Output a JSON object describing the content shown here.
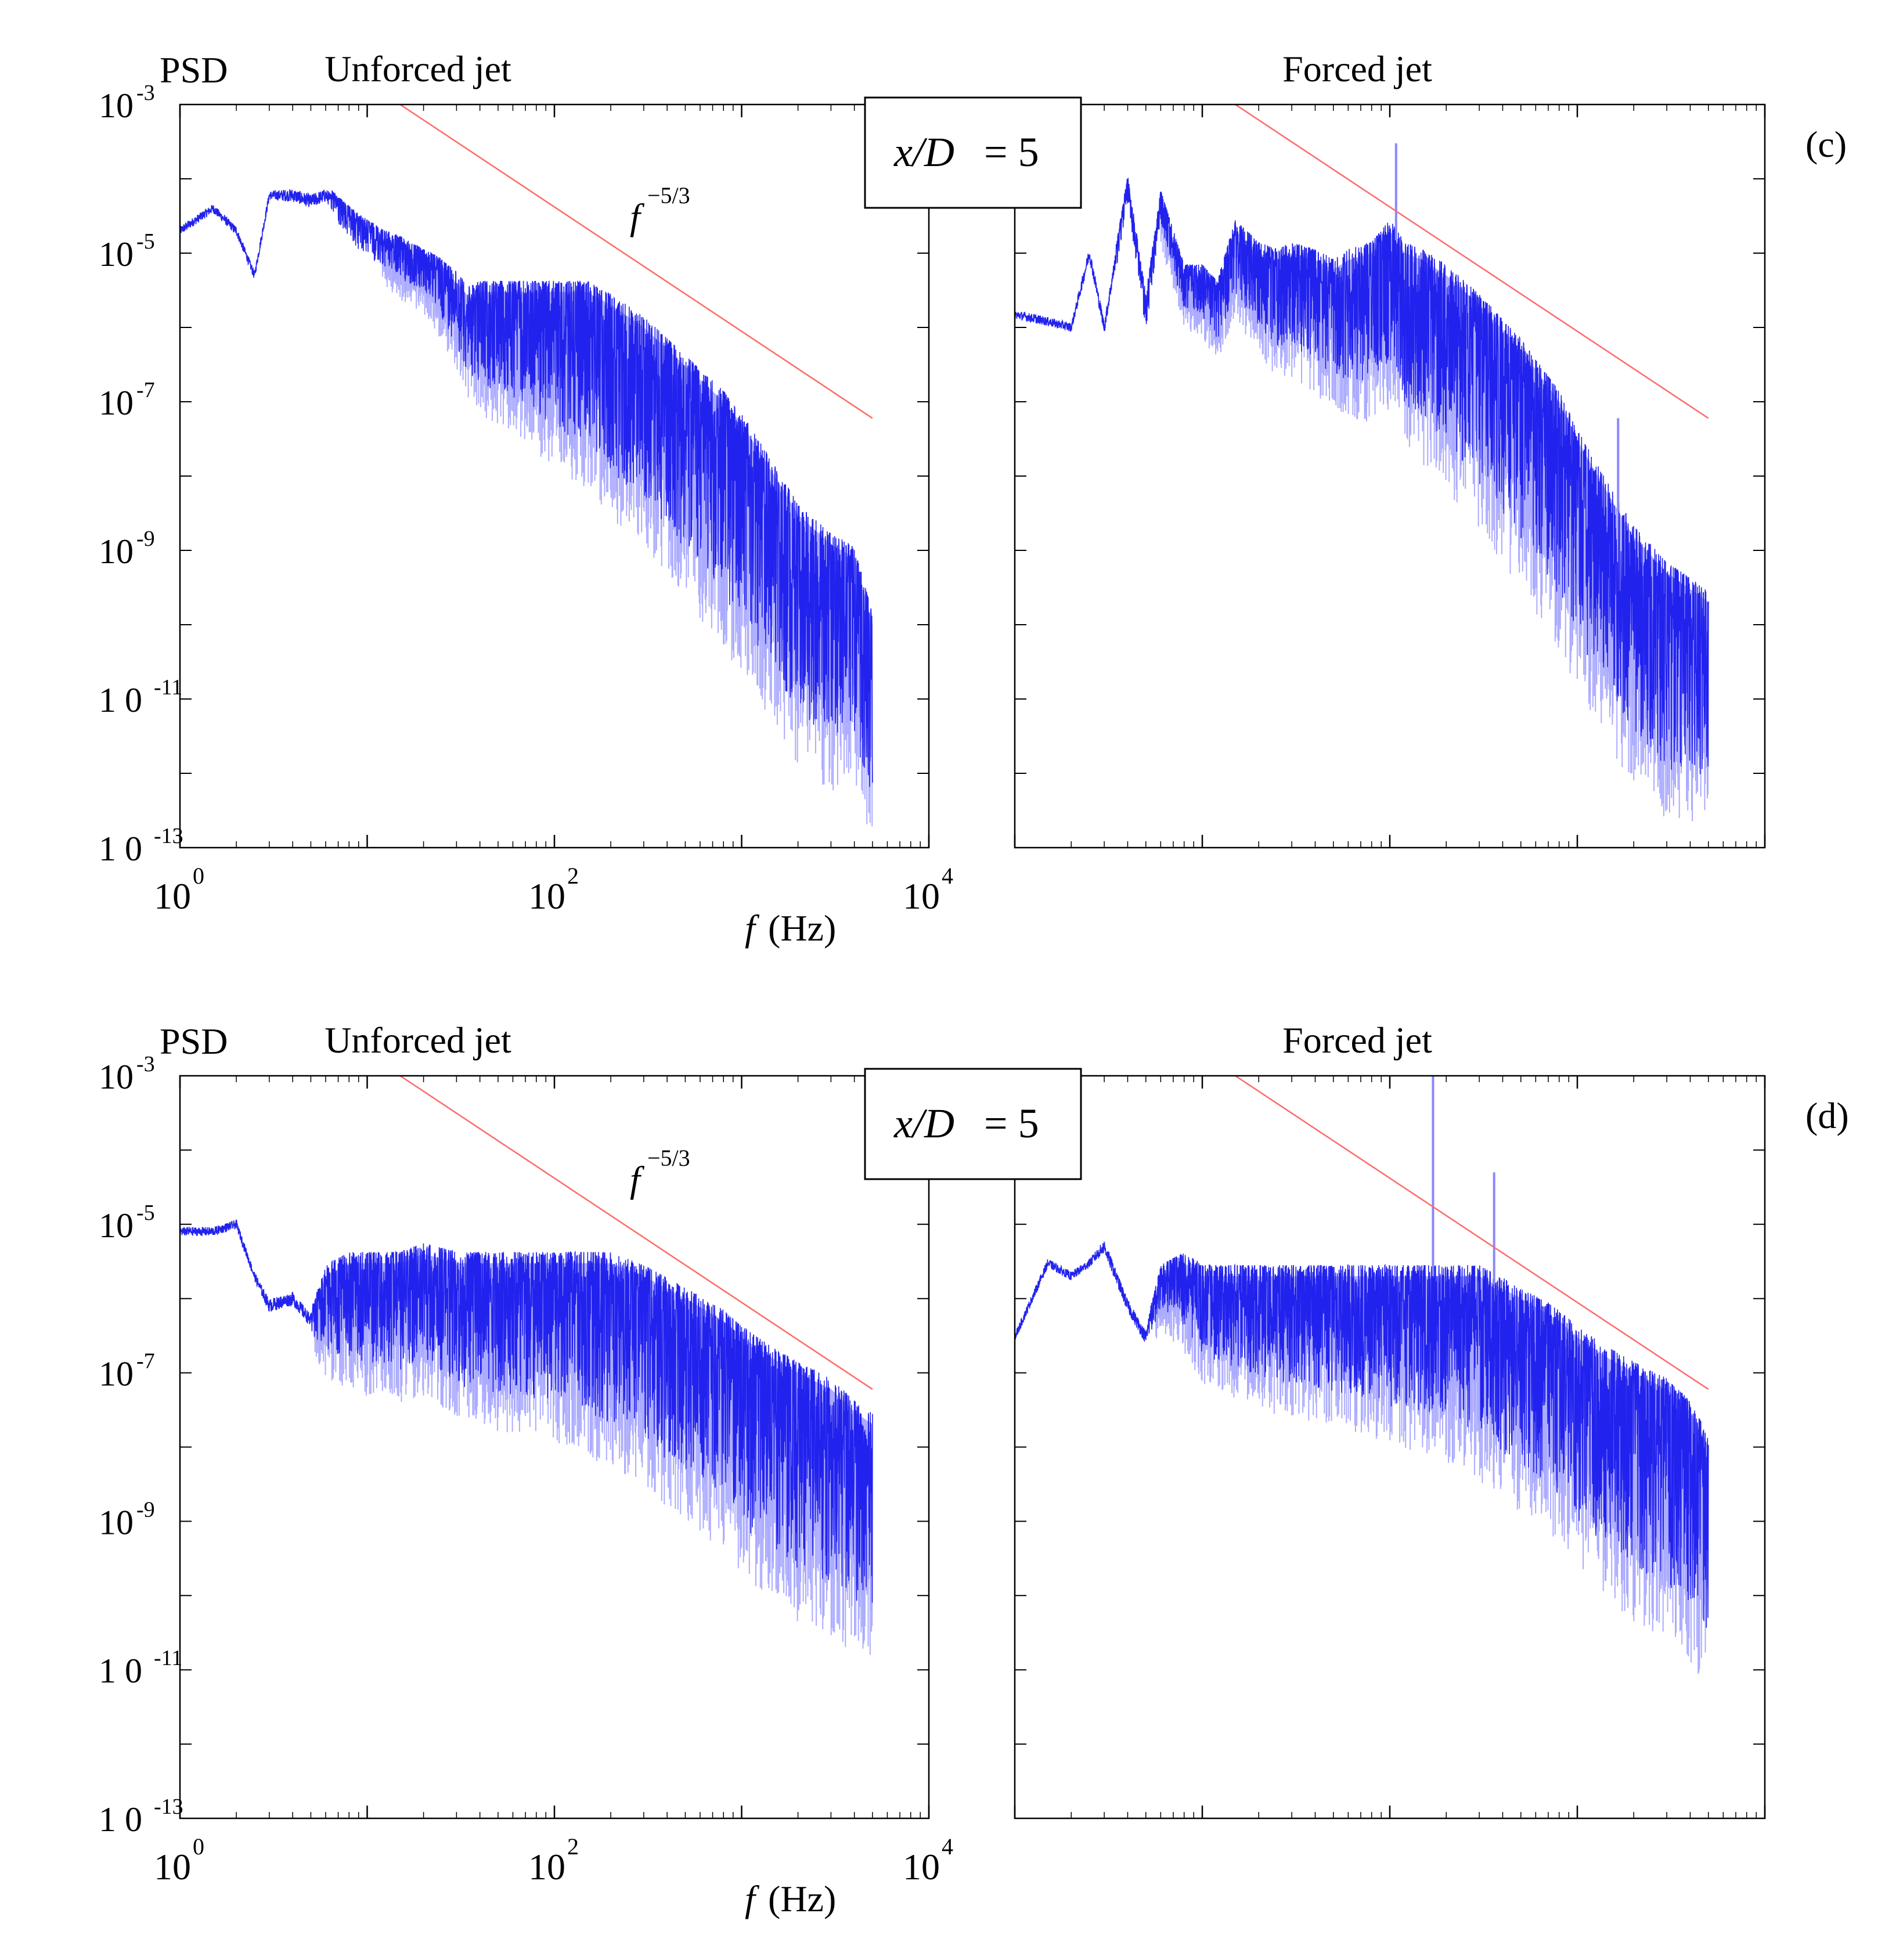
{
  "chart_data": [
    {
      "type": "line",
      "panel": "(c)",
      "ylabel": "PSD",
      "position_label": {
        "var": "x/D",
        "value": "= 5"
      },
      "xlabel": {
        "symbol": "f",
        "unit": "(Hz)"
      },
      "xlim": [
        1,
        10000
      ],
      "ylim": [
        1e-13,
        0.001
      ],
      "x_scale": "log",
      "y_scale": "log",
      "x_ticks": [
        {
          "base": "10",
          "exp": "0"
        },
        {
          "base": "10",
          "exp": "2"
        },
        {
          "base": "10",
          "exp": "4"
        }
      ],
      "y_ticks": [
        {
          "base": "10",
          "exp": "-3"
        },
        {
          "base": "10",
          "exp": "-5"
        },
        {
          "base": "10",
          "exp": "-7"
        },
        {
          "base": "10",
          "exp": "-9"
        },
        {
          "base": "1 0",
          "exp": "-11"
        },
        {
          "base": "1 0",
          "exp": "-13"
        }
      ],
      "slope_label": {
        "base": "f",
        "exp": "−5/3"
      },
      "subplots": [
        {
          "title": "Unforced jet",
          "x": [
            1,
            1.5,
            2,
            2.5,
            3,
            4,
            5,
            6,
            8,
            10,
            12,
            15,
            20,
            25,
            30,
            35,
            40,
            50,
            60,
            80,
            100,
            150,
            200,
            300,
            500,
            800,
            1000,
            1500,
            2000,
            3000,
            4000,
            5000
          ],
          "y": [
            2e-05,
            4e-05,
            2e-05,
            5e-06,
            6e-05,
            6e-05,
            5e-05,
            6e-05,
            3e-05,
            2e-05,
            1.5e-05,
            1.2e-05,
            8e-06,
            6e-06,
            4e-06,
            2.5e-06,
            3e-06,
            3e-06,
            3e-06,
            3e-06,
            3e-06,
            3e-06,
            2e-06,
            1e-06,
            3e-07,
            1e-07,
            5e-08,
            1e-08,
            3e-09,
            1.2e-09,
            8e-10,
            1e-10
          ],
          "spread_decades": [
            0.2,
            0.2,
            0.2,
            0.2,
            0.2,
            0.3,
            0.3,
            0.3,
            0.5,
            0.5,
            0.5,
            0.6,
            0.6,
            0.8,
            1.0,
            1.2,
            1.4,
            1.5,
            1.6,
            1.8,
            2.0,
            2.2,
            2.4,
            2.5,
            2.6,
            2.8,
            2.8,
            2.8,
            2.8,
            2.8,
            2.6,
            2.5
          ],
          "slope_line": {
            "x": [
              15,
              5000
            ],
            "y": [
              0.001,
              6e-08
            ]
          }
        },
        {
          "title": "Forced jet",
          "x": [
            1,
            1.5,
            2,
            2.5,
            3,
            4,
            5,
            6,
            8,
            10,
            12,
            15,
            20,
            25,
            30,
            40,
            50,
            60,
            80,
            100,
            120,
            150,
            200,
            300,
            500,
            800,
            1000,
            1500,
            2000,
            3000,
            4000,
            5000
          ],
          "y": [
            1.5e-06,
            1.2e-06,
            1e-06,
            1e-05,
            1e-06,
            8e-05,
            2e-06,
            5e-05,
            5e-06,
            5e-06,
            3e-06,
            2e-05,
            1e-05,
            8e-06,
            1e-05,
            8e-06,
            6e-06,
            8e-06,
            1e-05,
            2e-05,
            1e-05,
            8e-06,
            5e-06,
            2e-06,
            5e-07,
            1e-07,
            3e-08,
            5e-09,
            1.5e-09,
            5e-10,
            3e-10,
            2e-10
          ],
          "spread_decades": [
            0.2,
            0.2,
            0.2,
            0.3,
            0.3,
            0.4,
            0.5,
            0.5,
            0.6,
            0.7,
            0.8,
            1.0,
            1.2,
            1.3,
            1.4,
            1.5,
            1.6,
            1.8,
            1.9,
            2.0,
            2.2,
            2.3,
            2.4,
            2.6,
            2.7,
            2.8,
            2.8,
            2.8,
            2.8,
            2.8,
            2.6,
            2.5
          ],
          "peaks": [
            {
              "x": 108,
              "y": 0.0003
            },
            {
              "x": 1650,
              "y": 6e-08
            }
          ],
          "slope_line": {
            "x": [
              15,
              5000
            ],
            "y": [
              0.001,
              6e-08
            ]
          }
        }
      ]
    },
    {
      "type": "line",
      "panel": "(d)",
      "ylabel": "PSD",
      "position_label": {
        "var": "x/D",
        "value": "= 5"
      },
      "xlabel": {
        "symbol": "f",
        "unit": "(Hz)"
      },
      "xlim": [
        1,
        10000
      ],
      "ylim": [
        1e-13,
        0.001
      ],
      "x_scale": "log",
      "y_scale": "log",
      "x_ticks": [
        {
          "base": "10",
          "exp": "0"
        },
        {
          "base": "10",
          "exp": "2"
        },
        {
          "base": "10",
          "exp": "4"
        }
      ],
      "y_ticks": [
        {
          "base": "10",
          "exp": "-3"
        },
        {
          "base": "10",
          "exp": "-5"
        },
        {
          "base": "10",
          "exp": "-7"
        },
        {
          "base": "10",
          "exp": "-9"
        },
        {
          "base": "1 0",
          "exp": "-11"
        },
        {
          "base": "1 0",
          "exp": "-13"
        }
      ],
      "slope_label": {
        "base": "f",
        "exp": "−5/3"
      },
      "subplots": [
        {
          "title": "Unforced jet",
          "x": [
            1,
            1.5,
            2,
            2.5,
            3,
            4,
            5,
            6,
            8,
            10,
            15,
            20,
            30,
            50,
            80,
            100,
            150,
            200,
            300,
            500,
            800,
            1000,
            1500,
            2000,
            3000,
            4000,
            5000
          ],
          "y": [
            8e-06,
            8e-06,
            1e-05,
            2e-06,
            8e-07,
            1e-06,
            5e-07,
            2e-06,
            3e-06,
            3e-06,
            3e-06,
            4e-06,
            3e-06,
            3e-06,
            3e-06,
            3e-06,
            3e-06,
            3e-06,
            2e-06,
            1e-06,
            5e-07,
            3e-07,
            1.5e-07,
            1e-07,
            6e-08,
            3e-08,
            2e-08
          ],
          "spread_decades": [
            0.2,
            0.2,
            0.2,
            0.2,
            0.3,
            0.3,
            0.3,
            1.2,
            1.4,
            1.5,
            1.6,
            1.6,
            1.8,
            1.9,
            2.0,
            2.0,
            2.2,
            2.3,
            2.4,
            2.5,
            2.6,
            2.7,
            2.8,
            2.8,
            2.8,
            2.7,
            2.6
          ],
          "slope_line": {
            "x": [
              15,
              5000
            ],
            "y": [
              0.001,
              6e-08
            ]
          }
        },
        {
          "title": "Forced jet",
          "x": [
            1,
            1.5,
            2,
            2.5,
            3,
            4,
            5,
            6,
            8,
            10,
            15,
            20,
            30,
            50,
            80,
            100,
            150,
            200,
            300,
            500,
            800,
            1000,
            1500,
            2000,
            3000,
            4000,
            5000
          ],
          "y": [
            3e-07,
            3e-06,
            2e-06,
            3e-06,
            5e-06,
            8e-07,
            3e-07,
            2e-06,
            3e-06,
            2e-06,
            2e-06,
            2e-06,
            2e-06,
            2e-06,
            2e-06,
            2e-06,
            2e-06,
            2e-06,
            2e-06,
            1e-06,
            5e-07,
            3e-07,
            1.5e-07,
            1e-07,
            6e-08,
            3e-08,
            1e-08
          ],
          "spread_decades": [
            0.2,
            0.2,
            0.2,
            0.2,
            0.3,
            0.3,
            0.3,
            0.6,
            1.0,
            1.2,
            1.4,
            1.5,
            1.6,
            1.7,
            1.8,
            1.9,
            2.0,
            2.1,
            2.3,
            2.4,
            2.5,
            2.6,
            2.7,
            2.8,
            2.8,
            2.8,
            2.8
          ],
          "peaks": [
            {
              "x": 170,
              "y": 0.001
            },
            {
              "x": 360,
              "y": 5e-05
            }
          ],
          "slope_line": {
            "x": [
              15,
              5000
            ],
            "y": [
              0.001,
              6e-08
            ]
          }
        }
      ]
    }
  ],
  "colors": {
    "spectrum": "#2222ee",
    "spectrum_light": "#8888ff",
    "slope": "#ff6a6a",
    "axes": "#000000"
  }
}
